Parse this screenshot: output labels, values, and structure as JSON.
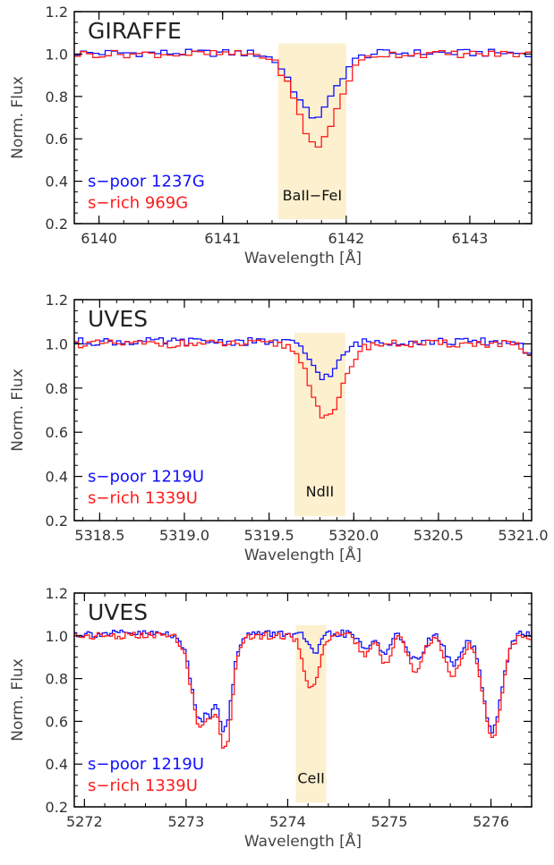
{
  "colors": {
    "spoor": "#1010ff",
    "srich": "#ff1a1a",
    "band": "#fdf0cf",
    "axis": "#000000"
  },
  "chart_data": [
    {
      "type": "line",
      "title": "GIRAFFE",
      "xlabel": "Wavelength [Å]",
      "ylabel": "Norm. Flux",
      "xlim": [
        6139.8,
        6143.5
      ],
      "ylim": [
        0.2,
        1.2
      ],
      "xticks": [
        6140,
        6141,
        6142,
        6143
      ],
      "xticklabels": [
        "6140",
        "6141",
        "6142",
        "6143"
      ],
      "yticks": [
        0.2,
        0.4,
        0.6,
        0.8,
        1.0,
        1.2
      ],
      "yticklabels": [
        "0.2",
        "0.4",
        "0.6",
        "0.8",
        "1.0",
        "1.2"
      ],
      "band": {
        "x": [
          6141.45,
          6142.0
        ],
        "label": "BaII−FeI"
      },
      "step": 0.05,
      "legend": "bottom-left",
      "series": [
        {
          "name": "s−poor 1237G",
          "color": "#1010ff",
          "baseline": 1.005,
          "lines": [
            {
              "center": 6141.72,
              "depth": 0.3,
              "sigma": 0.16
            }
          ]
        },
        {
          "name": "s−rich 969G",
          "color": "#ff1a1a",
          "baseline": 1.0,
          "lines": [
            {
              "center": 6141.74,
              "depth": 0.43,
              "sigma": 0.16
            }
          ]
        }
      ]
    },
    {
      "type": "line",
      "title": "UVES",
      "xlabel": "Wavelength [Å]",
      "ylabel": "Norm. Flux",
      "xlim": [
        5318.35,
        5321.05
      ],
      "ylim": [
        0.2,
        1.2
      ],
      "xticks": [
        5318.5,
        5319.0,
        5319.5,
        5320.0,
        5320.5,
        5321.0
      ],
      "xticklabels": [
        "5318.5",
        "5319.0",
        "5319.5",
        "5320.0",
        "5320.5",
        "5321.0"
      ],
      "yticks": [
        0.2,
        0.4,
        0.6,
        0.8,
        1.0,
        1.2
      ],
      "yticklabels": [
        "0.2",
        "0.4",
        "0.6",
        "0.8",
        "1.0",
        "1.2"
      ],
      "band": {
        "x": [
          5319.65,
          5319.95
        ],
        "label": "NdII"
      },
      "step": 0.025,
      "legend": "bottom-left",
      "series": [
        {
          "name": "s−poor 1219U",
          "color": "#1010ff",
          "baseline": 1.01,
          "lines": [
            {
              "center": 5319.82,
              "depth": 0.16,
              "sigma": 0.08
            },
            {
              "center": 5321.02,
              "depth": 0.05,
              "sigma": 0.03
            }
          ]
        },
        {
          "name": "s−rich 1339U",
          "color": "#ff1a1a",
          "baseline": 1.0,
          "lines": [
            {
              "center": 5319.83,
              "depth": 0.34,
              "sigma": 0.09
            },
            {
              "center": 5321.02,
              "depth": 0.07,
              "sigma": 0.03
            }
          ]
        }
      ]
    },
    {
      "type": "line",
      "title": "UVES",
      "xlabel": "Wavelength [Å]",
      "ylabel": "Norm. Flux",
      "xlim": [
        5271.9,
        5276.4
      ],
      "ylim": [
        0.2,
        1.2
      ],
      "xticks": [
        5272,
        5273,
        5274,
        5275,
        5276
      ],
      "xticklabels": [
        "5272",
        "5273",
        "5274",
        "5275",
        "5276"
      ],
      "yticks": [
        0.2,
        0.4,
        0.6,
        0.8,
        1.0,
        1.2
      ],
      "yticklabels": [
        "0.2",
        "0.4",
        "0.6",
        "0.8",
        "1.0",
        "1.2"
      ],
      "band": {
        "x": [
          5274.08,
          5274.38
        ],
        "label": "CeII"
      },
      "step": 0.025,
      "legend": "bottom-left",
      "series": [
        {
          "name": "s−poor 1219U",
          "color": "#1010ff",
          "baseline": 1.01,
          "lines": [
            {
              "center": 5273.13,
              "depth": 0.4,
              "sigma": 0.09
            },
            {
              "center": 5273.37,
              "depth": 0.44,
              "sigma": 0.07
            },
            {
              "center": 5273.23,
              "depth": 0.1,
              "sigma": 0.03
            },
            {
              "center": 5274.25,
              "depth": 0.09,
              "sigma": 0.06
            },
            {
              "center": 5274.75,
              "depth": 0.07,
              "sigma": 0.06
            },
            {
              "center": 5274.95,
              "depth": 0.1,
              "sigma": 0.05
            },
            {
              "center": 5275.25,
              "depth": 0.13,
              "sigma": 0.07
            },
            {
              "center": 5275.62,
              "depth": 0.14,
              "sigma": 0.08
            },
            {
              "center": 5276.0,
              "depth": 0.46,
              "sigma": 0.09
            }
          ]
        },
        {
          "name": "s−rich 1339U",
          "color": "#ff1a1a",
          "baseline": 1.0,
          "lines": [
            {
              "center": 5273.13,
              "depth": 0.42,
              "sigma": 0.09
            },
            {
              "center": 5273.37,
              "depth": 0.52,
              "sigma": 0.07
            },
            {
              "center": 5273.23,
              "depth": 0.1,
              "sigma": 0.03
            },
            {
              "center": 5274.22,
              "depth": 0.25,
              "sigma": 0.07
            },
            {
              "center": 5274.75,
              "depth": 0.09,
              "sigma": 0.06
            },
            {
              "center": 5274.95,
              "depth": 0.14,
              "sigma": 0.05
            },
            {
              "center": 5275.25,
              "depth": 0.17,
              "sigma": 0.07
            },
            {
              "center": 5275.62,
              "depth": 0.18,
              "sigma": 0.08
            },
            {
              "center": 5276.0,
              "depth": 0.47,
              "sigma": 0.09
            }
          ]
        }
      ]
    }
  ]
}
